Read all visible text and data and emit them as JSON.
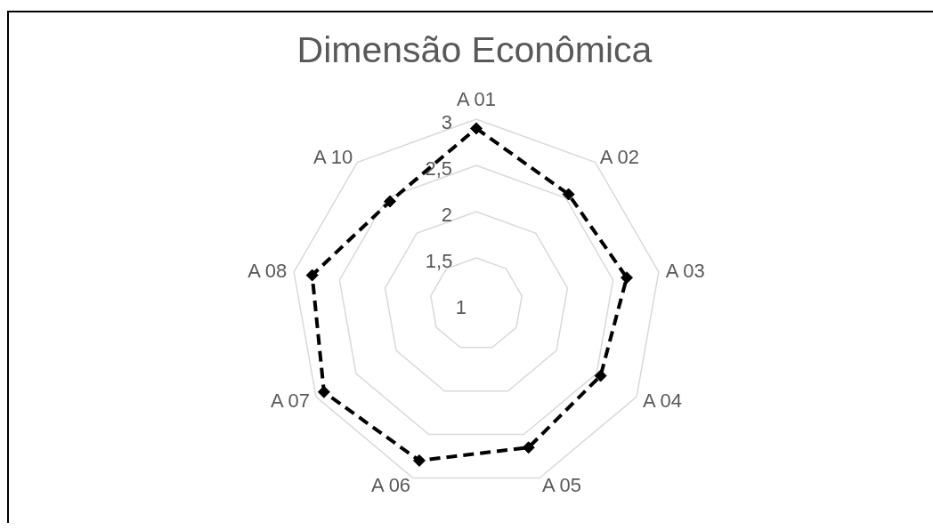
{
  "chart_data": {
    "type": "radar",
    "title": "Dimensão Econômica",
    "categories": [
      "A 01",
      "A 02",
      "A 03",
      "A 04",
      "A 05",
      "A 06",
      "A 07",
      "A 08",
      "A 10"
    ],
    "series": [
      {
        "color": "#000000",
        "values": [
          2.9,
          2.55,
          2.65,
          2.55,
          2.65,
          2.8,
          2.9,
          2.8,
          2.45
        ]
      }
    ],
    "ylim": [
      1,
      3
    ],
    "yticks": [
      1,
      {
        "value": 1.5,
        "label": "1,5"
      },
      2,
      {
        "value": 2.5,
        "label": "2,5"
      },
      3
    ],
    "grid": true,
    "marker": "diamond",
    "line_style": "dashed"
  }
}
